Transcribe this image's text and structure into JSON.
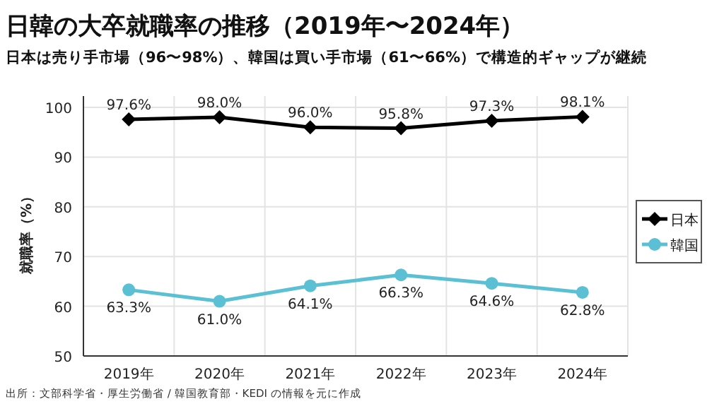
{
  "chart_data": {
    "type": "line",
    "title": "日韓の大卒就職率の推移（2019年〜2024年）",
    "subtitle": "日本は売り手市場（96〜98%）、韓国は買い手市場（61〜66%）で構造的ギャップが継続",
    "ylabel": "就職率（%）",
    "categories": [
      "2019年",
      "2020年",
      "2021年",
      "2022年",
      "2023年",
      "2024年"
    ],
    "series": [
      {
        "name": "日本",
        "color": "#000000",
        "marker": "diamond",
        "values": [
          97.6,
          98.0,
          96.0,
          95.8,
          97.3,
          98.1
        ],
        "value_labels": [
          "97.6%",
          "98.0%",
          "96.0%",
          "95.8%",
          "97.3%",
          "98.1%"
        ]
      },
      {
        "name": "韓国",
        "color": "#5bc0d3",
        "marker": "circle",
        "values": [
          63.3,
          61.0,
          64.1,
          66.3,
          64.6,
          62.8
        ],
        "value_labels": [
          "63.3%",
          "61.0%",
          "64.1%",
          "66.3%",
          "64.6%",
          "62.8%"
        ]
      }
    ],
    "ylim": [
      50,
      100
    ],
    "yticks": [
      50,
      60,
      70,
      80,
      90,
      100
    ],
    "grid": true,
    "legend": "right",
    "annotations": [
      "出所：文部科学省・厚生労働省 / 韓国教育部・KEDI の情報を元に作成"
    ]
  }
}
